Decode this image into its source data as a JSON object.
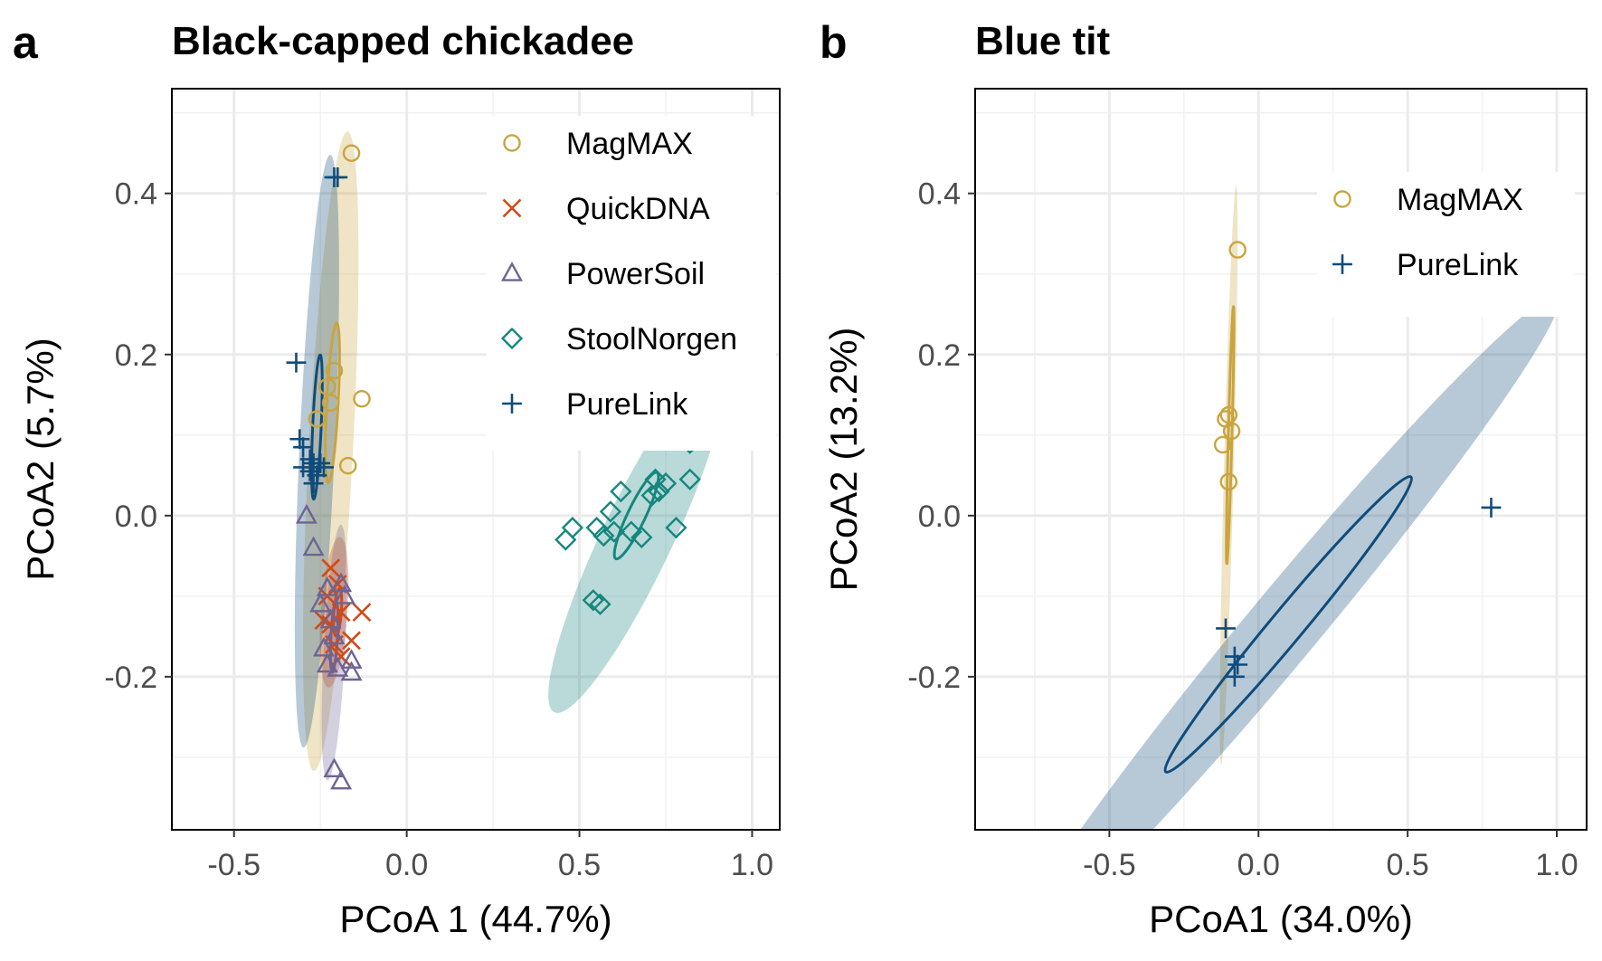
{
  "chart_data": [
    {
      "tag": "a",
      "type": "scatter",
      "title": "Black-capped chickadee",
      "xlabel": "PCoA 1 (44.7%)",
      "ylabel": "PCoA2 (5.7%)",
      "xlim": [
        -0.68,
        1.08
      ],
      "ylim": [
        -0.39,
        0.53
      ],
      "xticks": [
        -0.5,
        0.0,
        0.5,
        1.0
      ],
      "xtick_labels": [
        "-0.5",
        "0.0",
        "0.5",
        "1.0"
      ],
      "yticks": [
        -0.2,
        0.0,
        0.2,
        0.4
      ],
      "ytick_labels": [
        "-0.2",
        "0.0",
        "0.2",
        "0.4"
      ],
      "grid": true,
      "legend_position": "top-right",
      "series": [
        {
          "name": "MagMAX",
          "color": "#C9A43F",
          "marker": "circle",
          "points": [
            [
              -0.16,
              0.45
            ],
            [
              -0.13,
              0.145
            ],
            [
              -0.21,
              0.18
            ],
            [
              -0.23,
              0.16
            ],
            [
              -0.22,
              0.14
            ],
            [
              -0.26,
              0.12
            ],
            [
              -0.17,
              0.062
            ]
          ],
          "ellipse_outer": {
            "cx": -0.22,
            "cy": 0.08,
            "rx": 0.4,
            "ry": 0.062,
            "angle": -83
          },
          "ellipse_inner": {
            "cx": -0.215,
            "cy": 0.14,
            "rx": 0.1,
            "ry": 0.016,
            "angle": -83
          }
        },
        {
          "name": "QuickDNA",
          "color": "#D04A16",
          "marker": "cross",
          "points": [
            [
              -0.22,
              -0.065
            ],
            [
              -0.2,
              -0.085
            ],
            [
              -0.23,
              -0.1
            ],
            [
              -0.19,
              -0.12
            ],
            [
              -0.13,
              -0.12
            ],
            [
              -0.24,
              -0.13
            ],
            [
              -0.22,
              -0.135
            ],
            [
              -0.16,
              -0.155
            ],
            [
              -0.21,
              -0.16
            ],
            [
              -0.19,
              -0.175
            ]
          ],
          "ellipse_outer": {
            "cx": -0.21,
            "cy": -0.12,
            "rx": 0.095,
            "ry": 0.036,
            "angle": -80
          },
          "ellipse_inner": {
            "cx": -0.2,
            "cy": -0.12,
            "rx": 0.03,
            "ry": 0.01,
            "angle": -80
          }
        },
        {
          "name": "PowerSoil",
          "color": "#6E6494",
          "marker": "triangle",
          "points": [
            [
              -0.29,
              0.0
            ],
            [
              -0.27,
              -0.04
            ],
            [
              -0.23,
              -0.09
            ],
            [
              -0.19,
              -0.085
            ],
            [
              -0.18,
              -0.1
            ],
            [
              -0.25,
              -0.11
            ],
            [
              -0.22,
              -0.13
            ],
            [
              -0.21,
              -0.15
            ],
            [
              -0.24,
              -0.165
            ],
            [
              -0.16,
              -0.18
            ],
            [
              -0.23,
              -0.185
            ],
            [
              -0.2,
              -0.19
            ],
            [
              -0.16,
              -0.195
            ],
            [
              -0.21,
              -0.315
            ],
            [
              -0.19,
              -0.33
            ]
          ],
          "ellipse_outer": {
            "cx": -0.21,
            "cy": -0.17,
            "rx": 0.16,
            "ry": 0.03,
            "angle": -83
          },
          "ellipse_inner": {
            "cx": -0.21,
            "cy": -0.15,
            "rx": 0.045,
            "ry": 0.009,
            "angle": -83
          }
        },
        {
          "name": "StoolNorgen",
          "color": "#16867E",
          "marker": "diamond",
          "points": [
            [
              0.82,
              0.09
            ],
            [
              0.72,
              0.045
            ],
            [
              0.82,
              0.045
            ],
            [
              0.75,
              0.04
            ],
            [
              0.73,
              0.03
            ],
            [
              0.62,
              0.03
            ],
            [
              0.71,
              0.025
            ],
            [
              0.59,
              0.005
            ],
            [
              0.78,
              -0.015
            ],
            [
              0.48,
              -0.015
            ],
            [
              0.55,
              -0.015
            ],
            [
              0.6,
              -0.02
            ],
            [
              0.65,
              -0.02
            ],
            [
              0.57,
              -0.025
            ],
            [
              0.46,
              -0.03
            ],
            [
              0.68,
              -0.027
            ],
            [
              0.54,
              -0.105
            ],
            [
              0.56,
              -0.11
            ]
          ],
          "ellipse_outer": {
            "cx": 0.665,
            "cy": -0.03,
            "rx": 0.32,
            "ry": 0.055,
            "angle": -42
          },
          "ellipse_inner": {
            "cx": 0.665,
            "cy": -0.0,
            "rx": 0.08,
            "ry": 0.014,
            "angle": -42
          }
        },
        {
          "name": "PureLink",
          "color": "#0F4C7C",
          "marker": "plus",
          "points": [
            [
              -0.2,
              0.42
            ],
            [
              -0.21,
              0.42
            ],
            [
              -0.32,
              0.19
            ],
            [
              -0.31,
              0.095
            ],
            [
              -0.3,
              0.085
            ],
            [
              -0.28,
              0.07
            ],
            [
              -0.27,
              0.065
            ],
            [
              -0.25,
              0.065
            ],
            [
              -0.3,
              0.06
            ],
            [
              -0.28,
              0.055
            ],
            [
              -0.26,
              0.05
            ],
            [
              -0.24,
              0.06
            ],
            [
              -0.27,
              0.04
            ]
          ],
          "ellipse_outer": {
            "cx": -0.26,
            "cy": 0.08,
            "rx": 0.37,
            "ry": 0.05,
            "angle": -84
          },
          "ellipse_inner": {
            "cx": -0.26,
            "cy": 0.11,
            "rx": 0.09,
            "ry": 0.012,
            "angle": -84
          }
        }
      ]
    },
    {
      "tag": "b",
      "type": "scatter",
      "title": "Blue tit",
      "xlabel": "PCoA1 (34.0%)",
      "ylabel": "PCoA2 (13.2%)",
      "xlim": [
        -0.95,
        1.1
      ],
      "ylim": [
        -0.39,
        0.53
      ],
      "xticks": [
        -0.5,
        0.0,
        0.5,
        1.0
      ],
      "xtick_labels": [
        "-0.5",
        "0.0",
        "0.5",
        "1.0"
      ],
      "yticks": [
        -0.2,
        0.0,
        0.2,
        0.4
      ],
      "ytick_labels": [
        "-0.2",
        "0.0",
        "0.2",
        "0.4"
      ],
      "grid": true,
      "legend_position": "top-right",
      "series": [
        {
          "name": "MagMAX",
          "color": "#C9A43F",
          "marker": "circle",
          "points": [
            [
              -0.07,
              0.33
            ],
            [
              -0.1,
              0.125
            ],
            [
              -0.11,
              0.12
            ],
            [
              -0.09,
              0.105
            ],
            [
              -0.12,
              0.088
            ],
            [
              -0.1,
              0.042
            ]
          ],
          "ellipse_outer": {
            "cx": -0.1,
            "cy": 0.05,
            "rx": 0.36,
            "ry": 0.016,
            "angle": -86
          },
          "ellipse_inner": {
            "cx": -0.095,
            "cy": 0.1,
            "rx": 0.16,
            "ry": 0.006,
            "angle": -86
          }
        },
        {
          "name": "PureLink",
          "color": "#0F4C7C",
          "marker": "plus",
          "points": [
            [
              0.78,
              0.01
            ],
            [
              -0.11,
              -0.14
            ],
            [
              -0.08,
              -0.175
            ],
            [
              -0.07,
              -0.185
            ],
            [
              -0.08,
              -0.2
            ]
          ],
          "ellipse_outer": {
            "cx": 0.09,
            "cy": -0.135,
            "rx": 1.0,
            "ry": 0.048,
            "angle": -24
          },
          "ellipse_inner": {
            "cx": 0.1,
            "cy": -0.135,
            "rx": 0.45,
            "ry": 0.022,
            "angle": -24
          }
        }
      ]
    }
  ]
}
